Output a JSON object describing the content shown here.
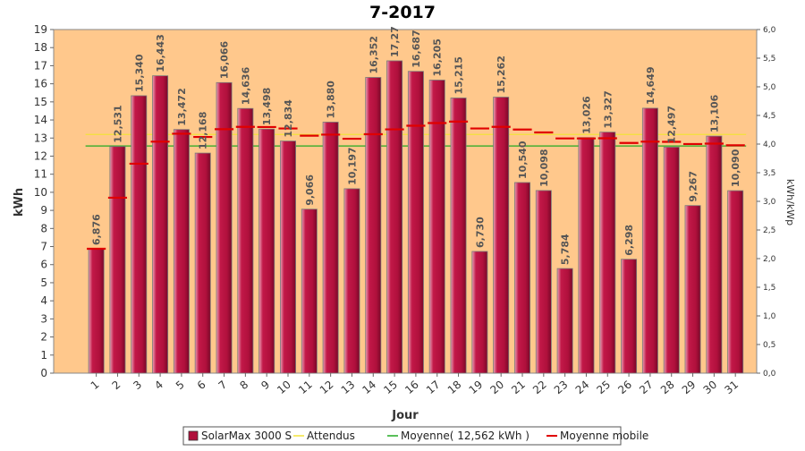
{
  "chart_data": {
    "type": "bar",
    "title": "7-2017",
    "xlabel": "Jour",
    "ylabel": "kWh",
    "y2label": "kWh/kWp",
    "categories": [
      "1",
      "2",
      "3",
      "4",
      "5",
      "6",
      "7",
      "8",
      "9",
      "10",
      "11",
      "12",
      "13",
      "14",
      "15",
      "16",
      "17",
      "18",
      "19",
      "20",
      "21",
      "22",
      "23",
      "24",
      "25",
      "26",
      "27",
      "28",
      "29",
      "30",
      "31"
    ],
    "ylim": [
      0,
      19
    ],
    "yticks": [
      "0",
      "1",
      "2",
      "3",
      "4",
      "5",
      "6",
      "7",
      "8",
      "9",
      "10",
      "11",
      "12",
      "13",
      "14",
      "15",
      "16",
      "17",
      "18",
      "19"
    ],
    "y2lim": [
      0,
      6.0
    ],
    "y2ticks": [
      "0,0",
      "0,5",
      "1,0",
      "1,5",
      "2,0",
      "2,5",
      "3,0",
      "3,5",
      "4,0",
      "4,5",
      "5,0",
      "5,5",
      "6,0"
    ],
    "series": [
      {
        "name": "SolarMax 3000 S",
        "kind": "bar",
        "color": "#b0103c",
        "values": [
          6.876,
          12.531,
          15.34,
          16.443,
          13.472,
          12.168,
          16.066,
          14.636,
          13.498,
          12.834,
          9.066,
          13.88,
          10.197,
          16.352,
          17.27,
          16.687,
          16.205,
          15.215,
          6.73,
          15.262,
          10.54,
          10.098,
          5.784,
          13.026,
          13.327,
          6.298,
          14.649,
          12.497,
          9.267,
          13.106,
          10.09
        ],
        "labels": [
          "6,876",
          "12,531",
          "15,340",
          "16,443",
          "13,472",
          "12,168",
          "16,066",
          "14,636",
          "13,498",
          "12,834",
          "9,066",
          "13,880",
          "10,197",
          "16,352",
          "17,27",
          "16,687",
          "16,205",
          "15,215",
          "6,730",
          "15,262",
          "10,540",
          "10,098",
          "5,784",
          "13,026",
          "13,327",
          "6,298",
          "14,649",
          "12,497",
          "9,267",
          "13,106",
          "10,090"
        ]
      },
      {
        "name": "Attendus",
        "kind": "line",
        "color": "#f2e23a",
        "value": 13.2
      },
      {
        "name": "Moyenne( 12,562 kWh )",
        "kind": "line",
        "color": "#22aa22",
        "value": 12.562
      },
      {
        "name": "Moyenne mobile",
        "kind": "step",
        "color": "#e00000",
        "values": [
          6.876,
          9.7,
          11.58,
          12.8,
          13.24,
          13.06,
          13.49,
          13.62,
          13.61,
          13.53,
          13.13,
          13.19,
          12.96,
          13.21,
          13.48,
          13.68,
          13.83,
          13.91,
          13.53,
          13.62,
          13.47,
          13.31,
          12.98,
          12.98,
          12.99,
          12.73,
          12.8,
          12.79,
          12.67,
          12.69,
          12.6
        ]
      }
    ],
    "legend_position": "bottom",
    "grid": false
  }
}
